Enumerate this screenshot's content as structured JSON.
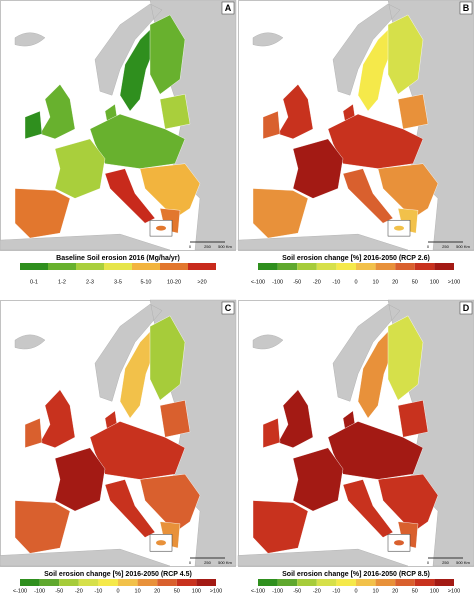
{
  "panels": [
    {
      "letter": "A",
      "legend": {
        "title": "Baseline Soil erosion 2016 (Mg/ha/yr)",
        "labels": [
          "0-1",
          "1-2",
          "2-3",
          "3-5",
          "5-10",
          "10-20",
          ">20"
        ],
        "colors": [
          "#2f8f1e",
          "#68b12e",
          "#a9cf3c",
          "#e6e54a",
          "#f2b43e",
          "#e2772e",
          "#c82a1c"
        ]
      },
      "scale": [
        "0",
        "250",
        "500 Km"
      ]
    },
    {
      "letter": "B",
      "legend": {
        "title": "Soil erosion change [%] 2016-2050 (RCP 2.6)",
        "labels": [
          "<-100",
          "-100",
          "-50",
          "-20",
          "-10",
          "0",
          "10",
          "20",
          "50",
          "100",
          ">100"
        ],
        "colors": [
          "#2f8f1e",
          "#5fa82e",
          "#a6cc3a",
          "#d6e04a",
          "#f5e94a",
          "#f2c14a",
          "#e8913a",
          "#d9602e",
          "#c8321e",
          "#a31a14"
        ]
      },
      "scale": [
        "0",
        "250",
        "500 Km"
      ]
    },
    {
      "letter": "C",
      "legend": {
        "title": "Soil erosion change [%] 2016-2050 (RCP 4.5)",
        "labels": [
          "<-100",
          "-100",
          "-50",
          "-20",
          "-10",
          "0",
          "10",
          "20",
          "50",
          "100",
          ">100"
        ],
        "colors": [
          "#2f8f1e",
          "#5fa82e",
          "#a6cc3a",
          "#d6e04a",
          "#f5e94a",
          "#f2c14a",
          "#e8913a",
          "#d9602e",
          "#c8321e",
          "#a31a14"
        ]
      },
      "scale": [
        "0",
        "250",
        "500 Km"
      ]
    },
    {
      "letter": "D",
      "legend": {
        "title": "Soil erosion change [%] 2016-2050 (RCP 8.5)",
        "labels": [
          "<-100",
          "-100",
          "-50",
          "-20",
          "-10",
          "0",
          "10",
          "20",
          "50",
          "100",
          ">100"
        ],
        "colors": [
          "#2f8f1e",
          "#5fa82e",
          "#a6cc3a",
          "#d6e04a",
          "#f5e94a",
          "#f2c14a",
          "#e8913a",
          "#d9602e",
          "#c8321e",
          "#a31a14"
        ]
      },
      "scale": [
        "0",
        "250",
        "500 Km"
      ]
    }
  ]
}
